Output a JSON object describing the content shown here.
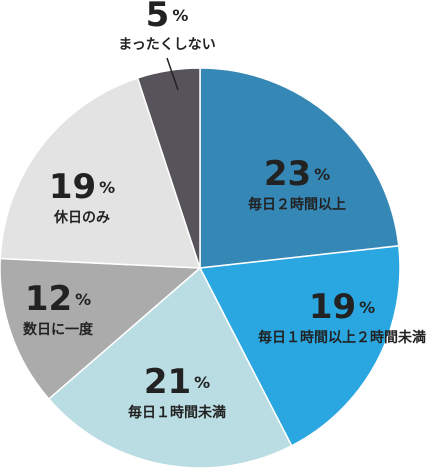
{
  "chart_data": {
    "type": "pie",
    "title": "",
    "unit": "%",
    "start_angle_deg": 0,
    "direction": "clockwise",
    "slices": [
      {
        "label": "毎日２時間以上",
        "value": 23,
        "color": "#3587b6"
      },
      {
        "label": "毎日１時間以上２時間未満",
        "value": 19,
        "color": "#2aa7e1"
      },
      {
        "label": "毎日１時間未満",
        "value": 21,
        "color": "#b9dde2"
      },
      {
        "label": "数日に一度",
        "value": 12,
        "color": "#ababab"
      },
      {
        "label": "休日のみ",
        "value": 19,
        "color": "#e3e3e3"
      },
      {
        "label": "まったくしない",
        "value": 5,
        "color": "#57535a"
      }
    ]
  }
}
